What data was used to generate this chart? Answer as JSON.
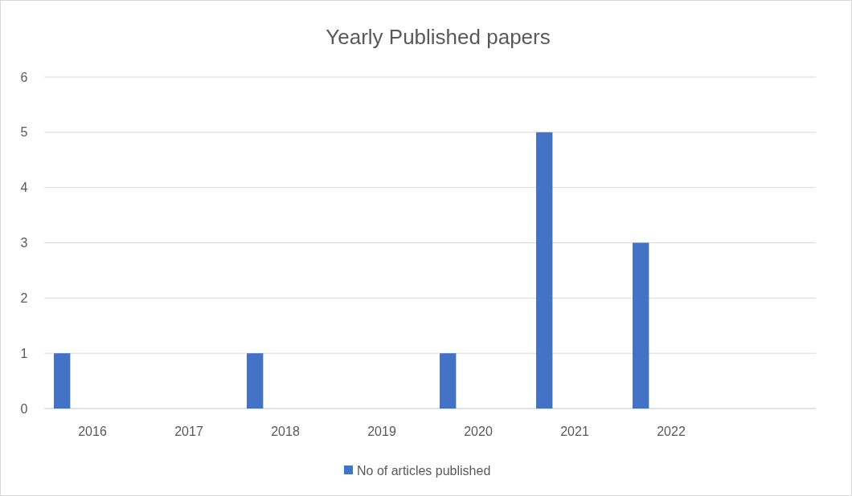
{
  "chart_data": {
    "type": "bar",
    "title": "Yearly Published papers",
    "categories": [
      "2016",
      "2017",
      "2018",
      "2019",
      "2020",
      "2021",
      "2022",
      null
    ],
    "series": [
      {
        "name": "No of articles published",
        "color": "#4472c4",
        "values": [
          1,
          0,
          1,
          0,
          1,
          5,
          3,
          null
        ]
      }
    ],
    "ylim": [
      0,
      6
    ],
    "yticks": [
      0,
      1,
      2,
      3,
      4,
      5,
      6
    ],
    "grid": "y",
    "legend": "bottom"
  }
}
